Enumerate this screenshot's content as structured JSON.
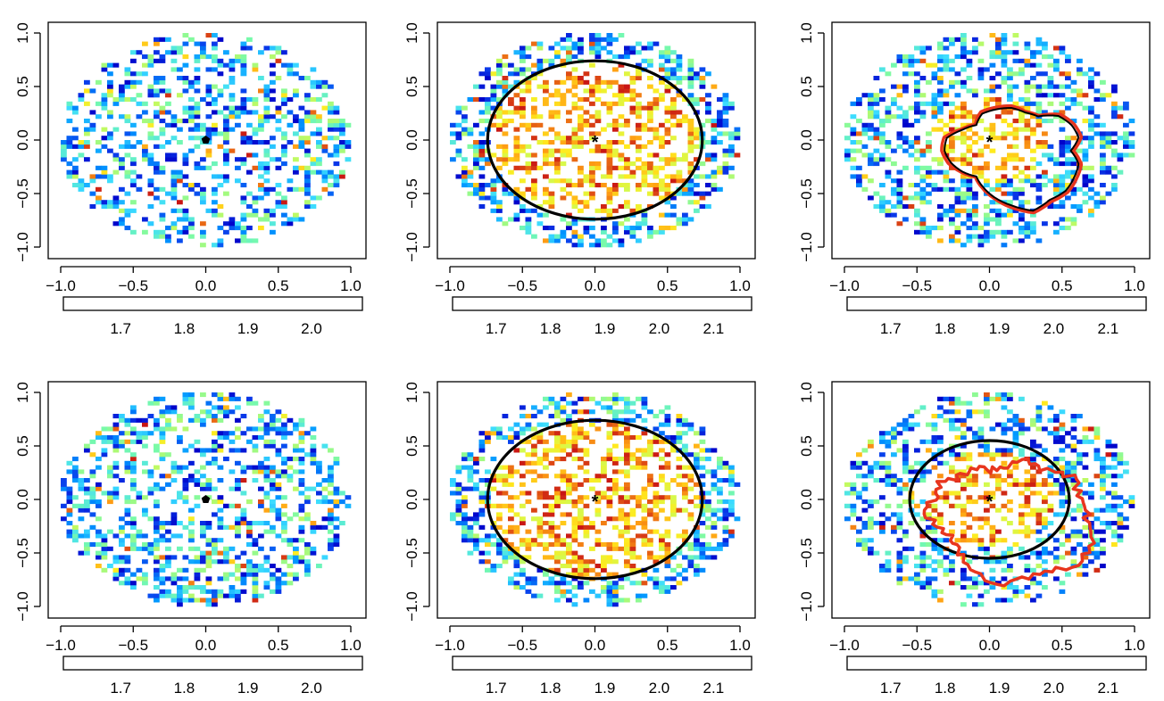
{
  "chart_data": [
    {
      "type": "heatmap",
      "panel": "row1-col1",
      "xlim": [
        -1,
        1
      ],
      "ylim": [
        -1,
        1
      ],
      "xticks": [
        "−1.0",
        "−0.5",
        "0.0",
        "0.5",
        "1.0"
      ],
      "yticks": [
        "−1.0",
        "−0.5",
        "0.0",
        "0.5",
        "1.0"
      ],
      "field": {
        "shape": "disk",
        "radius": 1.0,
        "cell": 0.04,
        "density": 0.38,
        "seed": 11,
        "level_range": [
          0.0,
          0.6
        ]
      },
      "center_marker": {
        "x": 0,
        "y": 0,
        "symbol": "pentagon"
      },
      "circle": null,
      "contours": [],
      "colorbar": {
        "ticks": [
          {
            "value": 1.7,
            "label": "1.7"
          },
          {
            "value": 1.8,
            "label": "1.8"
          },
          {
            "value": 1.9,
            "label": "1.9"
          },
          {
            "value": 2.0,
            "label": "2.0"
          }
        ],
        "range": [
          1.61,
          2.08
        ]
      }
    },
    {
      "type": "heatmap",
      "panel": "row1-col2",
      "xlim": [
        -1,
        1
      ],
      "ylim": [
        -1,
        1
      ],
      "xticks": [
        "−1.0",
        "−0.5",
        "0.0",
        "0.5",
        "1.0"
      ],
      "yticks": [
        "−1.0",
        "−0.5",
        "0.0",
        "0.5",
        "1.0"
      ],
      "field": {
        "shape": "disk",
        "radius": 1.0,
        "cell": 0.04,
        "density": 0.45,
        "seed": 23,
        "inner_radius": 0.74,
        "inner_range": [
          0.62,
          1.0
        ],
        "level_range": [
          0.0,
          0.6
        ]
      },
      "center_marker": {
        "x": 0,
        "y": 0,
        "symbol": "asterisk"
      },
      "circle": {
        "cx": 0,
        "cy": 0,
        "r": 0.74,
        "color": "#000000"
      },
      "contours": [],
      "colorbar": {
        "ticks": [
          {
            "value": 1.7,
            "label": "1.7"
          },
          {
            "value": 1.8,
            "label": "1.8"
          },
          {
            "value": 1.9,
            "label": "1.9"
          },
          {
            "value": 2.0,
            "label": "2.0"
          },
          {
            "value": 2.1,
            "label": "2.1"
          }
        ],
        "range": [
          1.62,
          2.17
        ]
      }
    },
    {
      "type": "heatmap",
      "panel": "row1-col3",
      "xlim": [
        -1,
        1
      ],
      "ylim": [
        -1,
        1
      ],
      "xticks": [
        "−1.0",
        "−0.5",
        "0.0",
        "0.5",
        "1.0"
      ],
      "yticks": [
        "−1.0",
        "−0.5",
        "0.0",
        "0.5",
        "1.0"
      ],
      "field": {
        "shape": "disk",
        "radius": 1.0,
        "cell": 0.04,
        "density": 0.42,
        "seed": 37,
        "inner_radius": 0.4,
        "inner_range": [
          0.62,
          1.0
        ],
        "level_range": [
          0.0,
          0.6
        ]
      },
      "center_marker": {
        "x": 0,
        "y": 0,
        "symbol": "asterisk"
      },
      "circle": null,
      "contours": [
        {
          "color": "#e8351e",
          "width": 3.5,
          "cx": 0.15,
          "cy": -0.1,
          "r": [
            0.43,
            0.5,
            0.5,
            0.48,
            0.38,
            0.38,
            0.42,
            0.42,
            0.42,
            0.35,
            0.4,
            0.48,
            0.48,
            0.45,
            0.4,
            0.35,
            0.4,
            0.46,
            0.53,
            0.6,
            0.55,
            0.55,
            0.52,
            0.5
          ]
        },
        {
          "color": "#000000",
          "width": 2.0,
          "cx": 0.15,
          "cy": -0.1,
          "r": [
            0.41,
            0.48,
            0.48,
            0.46,
            0.37,
            0.37,
            0.4,
            0.4,
            0.4,
            0.34,
            0.39,
            0.46,
            0.46,
            0.43,
            0.39,
            0.34,
            0.39,
            0.45,
            0.51,
            0.58,
            0.53,
            0.53,
            0.5,
            0.48
          ]
        }
      ],
      "colorbar": {
        "ticks": [
          {
            "value": 1.7,
            "label": "1.7"
          },
          {
            "value": 1.8,
            "label": "1.8"
          },
          {
            "value": 1.9,
            "label": "1.9"
          },
          {
            "value": 2.0,
            "label": "2.0"
          },
          {
            "value": 2.1,
            "label": "2.1"
          }
        ],
        "range": [
          1.62,
          2.17
        ]
      }
    },
    {
      "type": "heatmap",
      "panel": "row2-col1",
      "xlim": [
        -1,
        1
      ],
      "ylim": [
        -1,
        1
      ],
      "xticks": [
        "−1.0",
        "−0.5",
        "0.0",
        "0.5",
        "1.0"
      ],
      "yticks": [
        "−1.0",
        "−0.5",
        "0.0",
        "0.5",
        "1.0"
      ],
      "field": {
        "shape": "disk",
        "radius": 1.0,
        "cell": 0.04,
        "density": 0.38,
        "seed": 53,
        "level_range": [
          0.0,
          0.6
        ]
      },
      "center_marker": {
        "x": 0,
        "y": 0,
        "symbol": "pentagon"
      },
      "circle": null,
      "contours": [],
      "colorbar": {
        "ticks": [
          {
            "value": 1.7,
            "label": "1.7"
          },
          {
            "value": 1.8,
            "label": "1.8"
          },
          {
            "value": 1.9,
            "label": "1.9"
          },
          {
            "value": 2.0,
            "label": "2.0"
          }
        ],
        "range": [
          1.61,
          2.08
        ]
      }
    },
    {
      "type": "heatmap",
      "panel": "row2-col2",
      "xlim": [
        -1,
        1
      ],
      "ylim": [
        -1,
        1
      ],
      "xticks": [
        "−1.0",
        "−0.5",
        "0.0",
        "0.5",
        "1.0"
      ],
      "yticks": [
        "−1.0",
        "−0.5",
        "0.0",
        "0.5",
        "1.0"
      ],
      "field": {
        "shape": "disk",
        "radius": 1.0,
        "cell": 0.04,
        "density": 0.45,
        "seed": 71,
        "inner_radius": 0.74,
        "inner_range": [
          0.62,
          1.0
        ],
        "level_range": [
          0.0,
          0.6
        ]
      },
      "center_marker": {
        "x": 0,
        "y": 0,
        "symbol": "asterisk"
      },
      "circle": {
        "cx": 0,
        "cy": 0,
        "r": 0.74,
        "color": "#000000"
      },
      "contours": [],
      "colorbar": {
        "ticks": [
          {
            "value": 1.7,
            "label": "1.7"
          },
          {
            "value": 1.8,
            "label": "1.8"
          },
          {
            "value": 1.9,
            "label": "1.9"
          },
          {
            "value": 2.0,
            "label": "2.0"
          },
          {
            "value": 2.1,
            "label": "2.1"
          }
        ],
        "range": [
          1.62,
          2.17
        ]
      }
    },
    {
      "type": "heatmap",
      "panel": "row2-col3",
      "xlim": [
        -1,
        1
      ],
      "ylim": [
        -1,
        1
      ],
      "xticks": [
        "−1.0",
        "−0.5",
        "0.0",
        "0.5",
        "1.0"
      ],
      "yticks": [
        "−1.0",
        "−0.5",
        "0.0",
        "0.5",
        "1.0"
      ],
      "field": {
        "shape": "disk",
        "radius": 1.0,
        "cell": 0.04,
        "density": 0.42,
        "seed": 89,
        "inner_radius": 0.45,
        "inner_range": [
          0.62,
          1.0
        ],
        "level_range": [
          0.0,
          0.6
        ]
      },
      "center_marker": {
        "x": 0,
        "y": 0,
        "symbol": "asterisk"
      },
      "circle": {
        "cx": 0,
        "cy": 0,
        "r": 0.55,
        "color": "#000000"
      },
      "contours": [
        {
          "color": "#e8351e",
          "width": 3.5,
          "cx": 0.1,
          "cy": -0.1,
          "r": [
            0.55,
            0.52,
            0.58,
            0.5,
            0.45,
            0.5,
            0.4,
            0.38,
            0.45,
            0.43,
            0.5,
            0.48,
            0.55,
            0.5,
            0.45,
            0.48,
            0.55,
            0.62,
            0.7,
            0.65,
            0.65,
            0.7,
            0.68,
            0.6
          ],
          "jitter": 0.035
        }
      ],
      "colorbar": {
        "ticks": [
          {
            "value": 1.7,
            "label": "1.7"
          },
          {
            "value": 1.8,
            "label": "1.8"
          },
          {
            "value": 1.9,
            "label": "1.9"
          },
          {
            "value": 2.0,
            "label": "2.0"
          },
          {
            "value": 2.1,
            "label": "2.1"
          }
        ],
        "range": [
          1.62,
          2.17
        ]
      }
    }
  ]
}
